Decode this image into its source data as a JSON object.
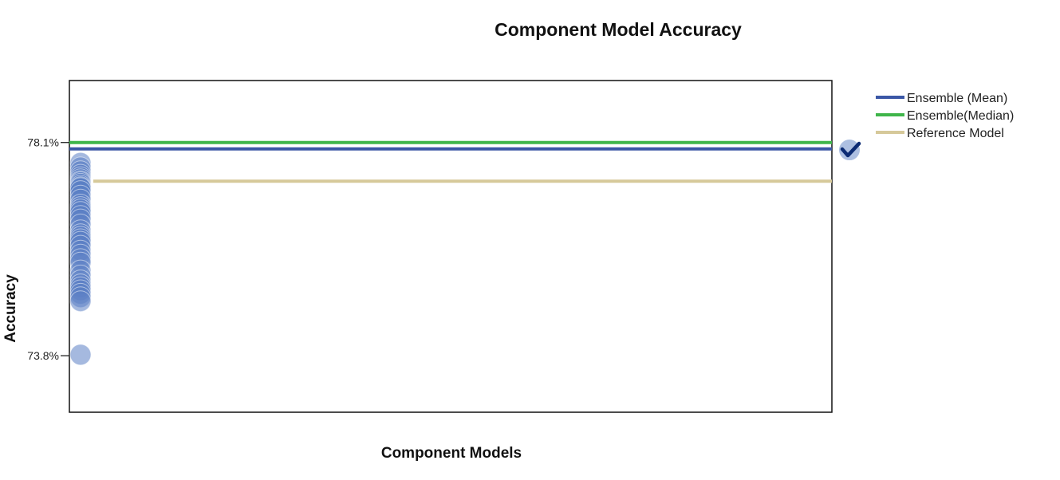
{
  "chart_data": {
    "type": "scatter",
    "title": "Component Model Accuracy",
    "xlabel": "Component Models",
    "ylabel": "Accuracy",
    "ylim": [
      72.66,
      79.35
    ],
    "yticks": [
      {
        "value": 78.1,
        "label": "78.1%"
      },
      {
        "value": 73.8,
        "label": "73.8%"
      }
    ],
    "grid": false,
    "legend_position": "top-right, outside plot",
    "series": [
      {
        "name": "Component models",
        "color": "#5b7fc4",
        "x": [
          1,
          1,
          1,
          1,
          1,
          1,
          1,
          1,
          1,
          1,
          1,
          1,
          1,
          1,
          1,
          1,
          1,
          1,
          1,
          1,
          1,
          1,
          1,
          1,
          1,
          1,
          1,
          1,
          1,
          1,
          1,
          1,
          1,
          1,
          1,
          1,
          1,
          1,
          1,
          1,
          1,
          1
        ],
        "values": [
          77.69,
          77.6,
          77.52,
          77.45,
          77.4,
          77.36,
          77.32,
          77.3,
          77.27,
          77.23,
          77.2,
          77.18,
          77.12,
          77.03,
          76.95,
          76.85,
          76.8,
          76.75,
          76.7,
          76.62,
          76.55,
          76.45,
          76.33,
          76.25,
          76.2,
          76.15,
          76.1,
          76.02,
          75.92,
          75.84,
          75.75,
          75.68,
          75.52,
          75.42,
          75.32,
          75.24,
          75.18,
          75.12,
          75.05,
          74.98,
          74.9,
          73.82
        ]
      }
    ],
    "ensemble_marker": {
      "value": 77.95,
      "icon": "check-icon",
      "selected": true
    },
    "reference_lines": [
      {
        "name": "Ensemble (Mean)",
        "value": 77.97,
        "color": "#3b57a6"
      },
      {
        "name": "Ensemble(Median)",
        "value": 78.1,
        "color": "#3fb54a"
      },
      {
        "name": "Reference Model",
        "value": 77.32,
        "color": "#d6c99a"
      }
    ]
  }
}
